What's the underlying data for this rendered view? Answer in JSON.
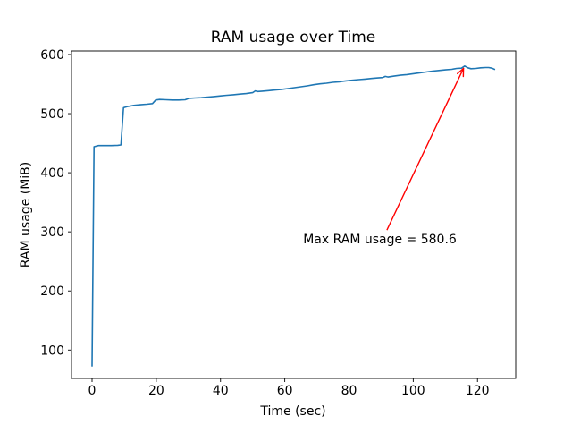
{
  "chart_data": {
    "type": "line",
    "title": "RAM usage over Time",
    "xlabel": "Time (sec)",
    "ylabel": "RAM usage (MiB)",
    "xlim": [
      -6.4,
      131.9
    ],
    "ylim": [
      52,
      606
    ],
    "xticks": [
      0,
      20,
      40,
      60,
      80,
      100,
      120
    ],
    "yticks": [
      100,
      200,
      300,
      400,
      500,
      600
    ],
    "grid": false,
    "legend": false,
    "background_color": "#ffffff",
    "spine_color": "#000000",
    "line_color": "#1f77b4",
    "max_value": 580.6,
    "series": [
      {
        "name": "RAM usage",
        "x": [
          0,
          0.6,
          2,
          4,
          6,
          8,
          9,
          9.8,
          11,
          13,
          15,
          17,
          18.8,
          19.8,
          21,
          23,
          25,
          27,
          29,
          30.2,
          32,
          34,
          36,
          38,
          40,
          42,
          44,
          46,
          48,
          50,
          50.8,
          51.6,
          53,
          55,
          57,
          59,
          61,
          63,
          65,
          67,
          69,
          71,
          73,
          75,
          77,
          79,
          81,
          83,
          85,
          87,
          89,
          90.5,
          91.3,
          92.2,
          94,
          96,
          98,
          100,
          102,
          104,
          106,
          108,
          110,
          112,
          113.5,
          115,
          116,
          117,
          118,
          119.5,
          121,
          122.5,
          123.5,
          124.5,
          125.3
        ],
        "y": [
          73,
          444,
          446,
          446,
          446,
          446.5,
          447,
          510,
          512,
          514,
          515,
          516,
          517,
          523,
          524,
          523.5,
          523,
          523,
          523.5,
          526,
          526.5,
          527,
          528,
          529,
          530,
          531,
          532,
          533,
          534,
          535.5,
          538.5,
          537.5,
          538,
          539,
          540,
          541,
          542.5,
          544,
          545.5,
          547,
          549,
          550.5,
          551.5,
          553,
          554,
          555.5,
          556.5,
          557.5,
          558.5,
          559.5,
          560.5,
          561,
          563,
          562,
          563.5,
          565,
          566,
          567.5,
          569,
          570.5,
          572,
          573,
          574,
          575,
          576.5,
          577,
          580.6,
          577.5,
          576,
          576.5,
          577.5,
          578,
          578,
          577,
          575
        ]
      }
    ],
    "annotation": {
      "text": "Max RAM usage = 580.6",
      "color": "#ff0000",
      "xy": [
        116,
        580.6
      ],
      "arrow_tail": [
        91.8,
        303
      ],
      "text_center": [
        89.5,
        287
      ]
    }
  }
}
